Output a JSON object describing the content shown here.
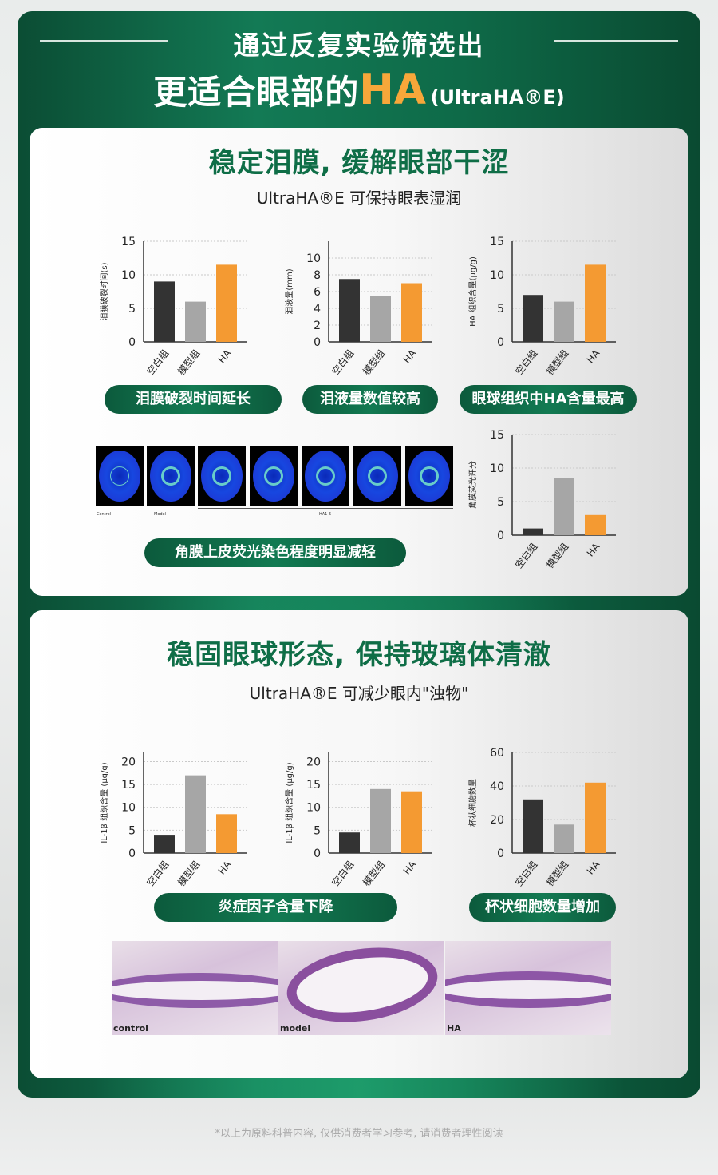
{
  "header": {
    "line1": "通过反复实验筛选出",
    "line2_main": "更适合眼部的",
    "line2_ha": "HA",
    "line2_sub": "(UltraHA®E)"
  },
  "section1": {
    "title": "稳定泪膜, 缓解眼部干涩",
    "subtitle": "UltraHA®E  可保持眼表湿润",
    "pills": [
      "泪膜破裂时间延长",
      "泪液量数值较高",
      "眼球组织中HA含量最高",
      "角膜上皮荧光染色程度明显减轻"
    ],
    "eye_labels": {
      "control": "Control",
      "model": "Model",
      "ha": "HA1-5"
    }
  },
  "section2": {
    "title": "稳固眼球形态, 保持玻璃体清澈",
    "subtitle": "UltraHA®E  可减少眼内\"浊物\"",
    "pills": [
      "炎症因子含量下降",
      "杯状细胞数量增加"
    ],
    "histo_labels": [
      "control",
      "model",
      "HA"
    ]
  },
  "footnote": "*以上为原料科普内容, 仅供消费者学习参考, 请消费者理性阅读",
  "colors": {
    "blank": "#333333",
    "model": "#a6a6a6",
    "ha": "#f49a32",
    "accent": "#0f6e47"
  },
  "chart_data": [
    {
      "type": "bar",
      "id": "c1",
      "ylabel": "泪膜破裂时间(s)",
      "categories": [
        "空白组",
        "模型组",
        "HA"
      ],
      "values": [
        9,
        6,
        11.5
      ],
      "ylim": [
        0,
        15
      ],
      "ticks": [
        0,
        5,
        10,
        15
      ]
    },
    {
      "type": "bar",
      "id": "c2",
      "ylabel": "泪液量(mm)",
      "categories": [
        "空白组",
        "模型组",
        "HA"
      ],
      "values": [
        7.5,
        5.5,
        7
      ],
      "ylim": [
        0,
        12
      ],
      "ticks": [
        0,
        2,
        4,
        6,
        8,
        10
      ]
    },
    {
      "type": "bar",
      "id": "c3",
      "ylabel": "HA 组织含量(μg/g)",
      "categories": [
        "空白组",
        "模型组",
        "HA"
      ],
      "values": [
        7,
        6,
        11.5
      ],
      "ylim": [
        0,
        15
      ],
      "ticks": [
        0,
        5,
        10,
        15
      ]
    },
    {
      "type": "bar",
      "id": "c4",
      "ylabel": "角膜荧光评分",
      "categories": [
        "空白组",
        "模型组",
        "HA"
      ],
      "values": [
        1,
        8.5,
        3
      ],
      "ylim": [
        0,
        15
      ],
      "ticks": [
        0,
        5,
        10,
        15
      ]
    },
    {
      "type": "bar",
      "id": "c5",
      "ylabel": "IL-1β 组织含量 (μg/g)",
      "categories": [
        "空白组",
        "模型组",
        "HA"
      ],
      "values": [
        4,
        17,
        8.5
      ],
      "ylim": [
        0,
        22
      ],
      "ticks": [
        0,
        5,
        10,
        15,
        20
      ]
    },
    {
      "type": "bar",
      "id": "c6",
      "ylabel": "IL-1β 组织含量 (μg/g)",
      "categories": [
        "空白组",
        "模型组",
        "HA"
      ],
      "values": [
        4.5,
        14,
        13.5
      ],
      "ylim": [
        0,
        22
      ],
      "ticks": [
        0,
        5,
        10,
        15,
        20
      ]
    },
    {
      "type": "bar",
      "id": "c7",
      "ylabel": "杯状细胞数量",
      "categories": [
        "空白组",
        "模型组",
        "HA"
      ],
      "values": [
        32,
        17,
        42
      ],
      "ylim": [
        0,
        60
      ],
      "ticks": [
        0,
        20,
        40,
        60
      ]
    }
  ]
}
